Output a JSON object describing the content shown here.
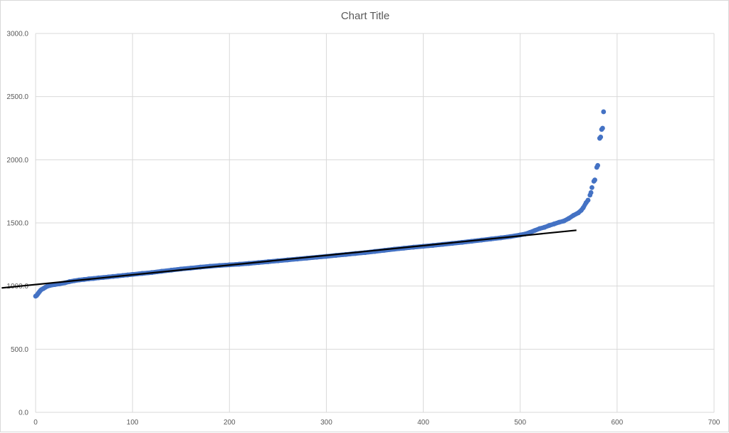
{
  "chart_data": {
    "type": "scatter",
    "title": "Chart Title",
    "xlabel": "",
    "ylabel": "",
    "xlim": [
      0,
      700
    ],
    "ylim": [
      0,
      3000
    ],
    "x_ticks": [
      0,
      100,
      200,
      300,
      400,
      500,
      600,
      700
    ],
    "y_ticks": [
      0,
      500,
      1000,
      1500,
      2000,
      2500,
      3000
    ],
    "x_tick_labels": [
      "0",
      "100",
      "200",
      "300",
      "400",
      "500",
      "600",
      "700"
    ],
    "y_tick_labels": [
      "0.0",
      "500.0",
      "1000.0",
      "1500.0",
      "2000.0",
      "2500.0",
      "3000.0"
    ],
    "grid": true,
    "legend": "none",
    "series": [
      {
        "marker_color": "#4472c4",
        "points": [
          [
            0,
            920
          ],
          [
            1,
            925
          ],
          [
            2,
            935
          ],
          [
            3,
            945
          ],
          [
            4,
            955
          ],
          [
            5,
            965
          ],
          [
            6,
            972
          ],
          [
            8,
            980
          ],
          [
            10,
            990
          ],
          [
            12,
            998
          ],
          [
            15,
            1005
          ],
          [
            20,
            1012
          ],
          [
            25,
            1018
          ],
          [
            30,
            1025
          ],
          [
            35,
            1035
          ],
          [
            40,
            1042
          ],
          [
            45,
            1048
          ],
          [
            50,
            1052
          ],
          [
            55,
            1057
          ],
          [
            60,
            1060
          ],
          [
            65,
            1065
          ],
          [
            70,
            1068
          ],
          [
            75,
            1072
          ],
          [
            80,
            1076
          ],
          [
            85,
            1080
          ],
          [
            90,
            1084
          ],
          [
            95,
            1088
          ],
          [
            100,
            1092
          ],
          [
            110,
            1100
          ],
          [
            120,
            1107
          ],
          [
            130,
            1117
          ],
          [
            140,
            1126
          ],
          [
            150,
            1135
          ],
          [
            160,
            1142
          ],
          [
            170,
            1150
          ],
          [
            180,
            1157
          ],
          [
            190,
            1163
          ],
          [
            200,
            1168
          ],
          [
            210,
            1173
          ],
          [
            220,
            1179
          ],
          [
            230,
            1186
          ],
          [
            240,
            1193
          ],
          [
            250,
            1200
          ],
          [
            260,
            1207
          ],
          [
            270,
            1214
          ],
          [
            280,
            1221
          ],
          [
            290,
            1228
          ],
          [
            300,
            1235
          ],
          [
            310,
            1243
          ],
          [
            320,
            1250
          ],
          [
            330,
            1258
          ],
          [
            340,
            1265
          ],
          [
            350,
            1274
          ],
          [
            360,
            1283
          ],
          [
            370,
            1292
          ],
          [
            380,
            1300
          ],
          [
            390,
            1308
          ],
          [
            400,
            1315
          ],
          [
            410,
            1322
          ],
          [
            420,
            1330
          ],
          [
            430,
            1338
          ],
          [
            440,
            1346
          ],
          [
            450,
            1355
          ],
          [
            460,
            1364
          ],
          [
            470,
            1373
          ],
          [
            480,
            1382
          ],
          [
            490,
            1392
          ],
          [
            500,
            1405
          ],
          [
            505,
            1412
          ],
          [
            510,
            1425
          ],
          [
            515,
            1440
          ],
          [
            520,
            1455
          ],
          [
            525,
            1465
          ],
          [
            530,
            1480
          ],
          [
            535,
            1492
          ],
          [
            540,
            1505
          ],
          [
            545,
            1515
          ],
          [
            550,
            1535
          ],
          [
            555,
            1560
          ],
          [
            560,
            1580
          ],
          [
            563,
            1600
          ],
          [
            565,
            1620
          ],
          [
            568,
            1660
          ],
          [
            570,
            1680
          ],
          [
            572,
            1720
          ],
          [
            573,
            1740
          ],
          [
            574,
            1780
          ],
          [
            576,
            1830
          ],
          [
            577,
            1840
          ],
          [
            579,
            1940
          ],
          [
            580,
            1955
          ],
          [
            582,
            2170
          ],
          [
            583,
            2180
          ],
          [
            584,
            2240
          ],
          [
            585,
            2250
          ],
          [
            586,
            2380
          ]
        ]
      },
      {
        "type": "line",
        "line_color": "#000000",
        "points": [
          [
            -35,
            985
          ],
          [
            558,
            1442
          ]
        ]
      }
    ]
  }
}
